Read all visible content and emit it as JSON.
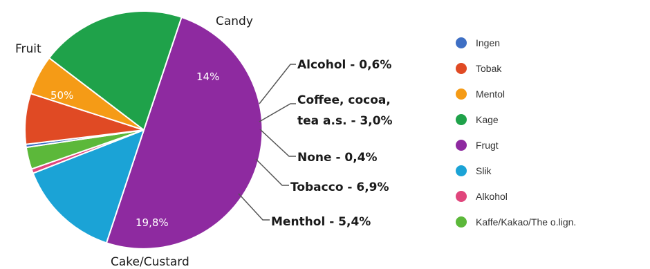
{
  "chart_data": {
    "type": "pie",
    "slices": [
      {
        "label": "Fruit",
        "value": 50.0,
        "pct_label": "50%",
        "color": "#8e2aa0"
      },
      {
        "label": "Candy",
        "value": 14.0,
        "pct_label": "14%",
        "color": "#1ba3d6"
      },
      {
        "label": "Alcohol - 0,6%",
        "value": 0.6,
        "pct_label": "",
        "color": "#e0467c"
      },
      {
        "label": "Coffee, cocoa,",
        "label2": "tea a.s. - 3,0%",
        "value": 3.0,
        "pct_label": "",
        "color": "#5cb83a"
      },
      {
        "label": "None - 0,4%",
        "value": 0.4,
        "pct_label": "",
        "color": "#3e6fc4"
      },
      {
        "label": "Tobacco - 6,9%",
        "value": 6.9,
        "pct_label": "",
        "color": "#e04a24"
      },
      {
        "label": "Menthol - 5,4%",
        "value": 5.4,
        "pct_label": "",
        "color": "#f59b16"
      },
      {
        "label": "Cake/Custard",
        "value": 19.8,
        "pct_label": "19,8%",
        "color": "#1fa24a"
      }
    ],
    "legend": {
      "position": "right",
      "entries": [
        {
          "name": "Ingen",
          "color": "#3e6fc4"
        },
        {
          "name": "Tobak",
          "color": "#e04a24"
        },
        {
          "name": "Mentol",
          "color": "#f59b16"
        },
        {
          "name": "Kage",
          "color": "#1fa24a"
        },
        {
          "name": "Frugt",
          "color": "#8e2aa0"
        },
        {
          "name": "Slik",
          "color": "#1ba3d6"
        },
        {
          "name": "Alkohol",
          "color": "#e0467c"
        },
        {
          "name": "Kaffe/Kakao/The o.lign.",
          "color": "#5cb83a"
        }
      ]
    }
  }
}
